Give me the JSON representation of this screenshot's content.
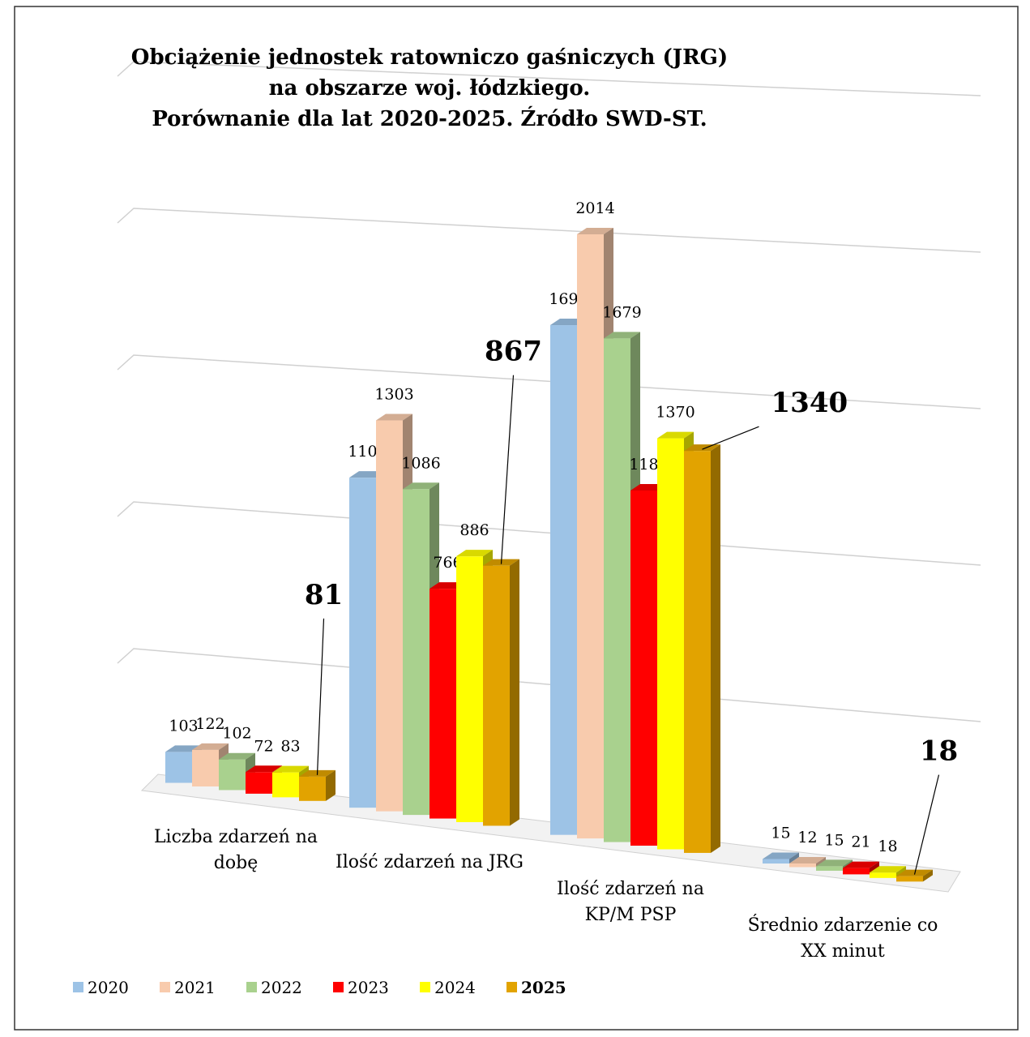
{
  "chart_data": {
    "type": "bar3d",
    "title": "Obciążenie jednostek ratowniczo gaśniczych (JRG)\nna obszarze woj. łódzkiego.\nPorównanie dla lat 2020-2025. Źródło SWD-ST.",
    "categories": [
      "Liczba zdarzeń na dobę",
      "Ilość zdarzeń na JRG",
      "Ilość zdarzeń na KP/M PSP",
      "Średnio zdarzenie co XX minut"
    ],
    "series": [
      {
        "name": "2020",
        "color": "#9dc3e6",
        "values": [
          103,
          1100,
          1699,
          15
        ]
      },
      {
        "name": "2021",
        "color": "#f8cbad",
        "values": [
          122,
          1303,
          2014,
          12
        ]
      },
      {
        "name": "2022",
        "color": "#a9d18e",
        "values": [
          102,
          1086,
          1679,
          15
        ]
      },
      {
        "name": "2023",
        "color": "#ff0000",
        "values": [
          72,
          766,
          1184,
          21
        ]
      },
      {
        "name": "2024",
        "color": "#ffff00",
        "values": [
          83,
          886,
          1370,
          18
        ]
      },
      {
        "name": "2025",
        "color": "#e2a300",
        "values": [
          81,
          867,
          1340,
          18
        ]
      }
    ],
    "ylim": [
      0,
      2500
    ],
    "yticks": [
      0,
      500,
      1000,
      1500,
      2000,
      2500
    ],
    "grid": true,
    "legend": "bottom"
  }
}
